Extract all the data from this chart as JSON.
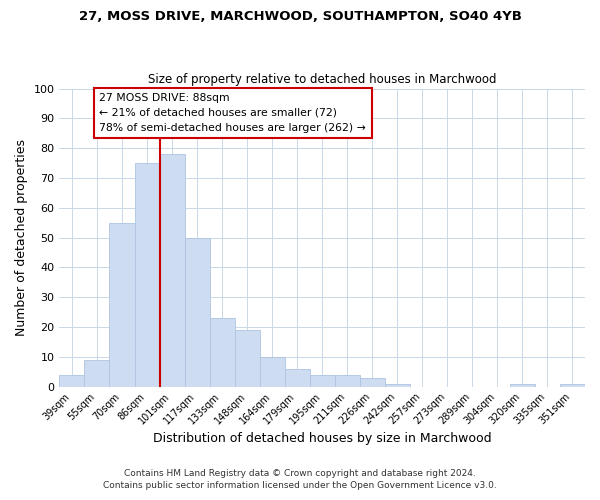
{
  "title": "27, MOSS DRIVE, MARCHWOOD, SOUTHAMPTON, SO40 4YB",
  "subtitle": "Size of property relative to detached houses in Marchwood",
  "xlabel": "Distribution of detached houses by size in Marchwood",
  "ylabel": "Number of detached properties",
  "bar_color": "#cddcf0",
  "bar_edge_color": "#afc4e0",
  "categories": [
    "39sqm",
    "55sqm",
    "70sqm",
    "86sqm",
    "101sqm",
    "117sqm",
    "133sqm",
    "148sqm",
    "164sqm",
    "179sqm",
    "195sqm",
    "211sqm",
    "226sqm",
    "242sqm",
    "257sqm",
    "273sqm",
    "289sqm",
    "304sqm",
    "320sqm",
    "335sqm",
    "351sqm"
  ],
  "values": [
    4,
    9,
    55,
    75,
    78,
    50,
    23,
    19,
    10,
    6,
    4,
    4,
    3,
    1,
    0,
    0,
    0,
    0,
    1,
    0,
    1
  ],
  "ylim": [
    0,
    100
  ],
  "yticks": [
    0,
    10,
    20,
    30,
    40,
    50,
    60,
    70,
    80,
    90,
    100
  ],
  "property_line_x": 3.5,
  "annotation_line1": "27 MOSS DRIVE: 88sqm",
  "annotation_line2": "← 21% of detached houses are smaller (72)",
  "annotation_line3": "78% of semi-detached houses are larger (262) →",
  "line_color": "#cc0000",
  "box_edge_color": "#cc0000",
  "footer_line1": "Contains HM Land Registry data © Crown copyright and database right 2024.",
  "footer_line2": "Contains public sector information licensed under the Open Government Licence v3.0.",
  "background_color": "#ffffff",
  "grid_color": "#c8d8e8"
}
